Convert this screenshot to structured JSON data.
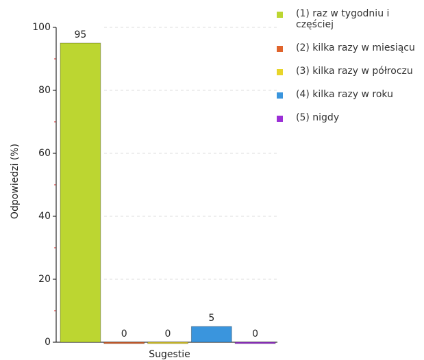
{
  "chart_data": {
    "type": "bar",
    "y_label": "Odpowiedzi (%)",
    "categories": [
      "Sugestie"
    ],
    "series": [
      {
        "name": "(1) raz w tygodniu i częściej",
        "color": "#bcd631",
        "values": [
          95
        ]
      },
      {
        "name": "(2) kilka razy w miesiącu",
        "color": "#e0642c",
        "values": [
          0
        ]
      },
      {
        "name": "(3) kilka razy w półroczu",
        "color": "#e8d52a",
        "values": [
          0
        ]
      },
      {
        "name": "(4) kilka razy w roku",
        "color": "#3a95dd",
        "values": [
          5
        ]
      },
      {
        "name": "(5) nigdy",
        "color": "#9b2fd6",
        "values": [
          0
        ]
      }
    ],
    "ylim": [
      0,
      100
    ],
    "yticks": [
      0,
      20,
      40,
      60,
      80,
      100
    ],
    "grid": true,
    "legend": "right"
  }
}
